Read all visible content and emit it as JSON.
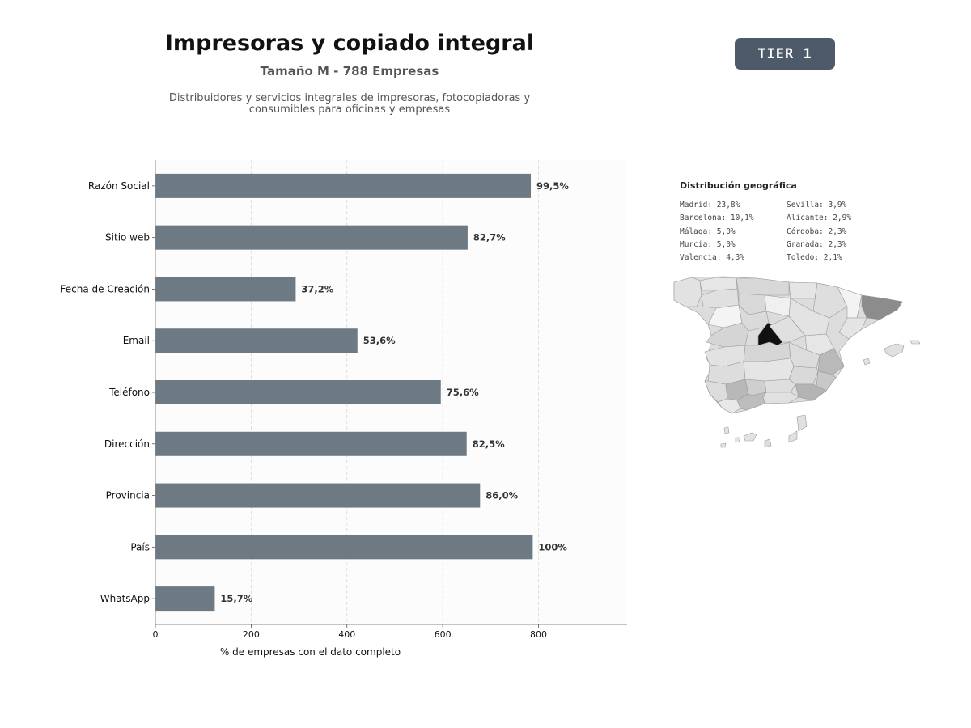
{
  "header": {
    "title": "Impresoras y copiado integral",
    "subtitle": "Tamaño M - 788 Empresas",
    "description_line1": "Distribuidores y servicios integrales de impresoras, fotocopiadoras y",
    "description_line2": "consumibles para oficinas y empresas",
    "tier_badge": "TIER 1"
  },
  "chart_data": {
    "type": "bar",
    "orientation": "horizontal",
    "categories": [
      "Razón Social",
      "Sitio web",
      "Fecha de Creación",
      "Email",
      "Teléfono",
      "Dirección",
      "Provincia",
      "País",
      "WhatsApp"
    ],
    "values": [
      784,
      652,
      293,
      422,
      596,
      650,
      678,
      788,
      124
    ],
    "data_labels": [
      "99,5%",
      "82,7%",
      "37,2%",
      "53,6%",
      "75,6%",
      "82,5%",
      "86,0%",
      "100%",
      "15,7%"
    ],
    "xlabel": "% de empresas con el dato completo",
    "xticks": [
      0,
      200,
      400,
      600,
      800
    ],
    "xlim": [
      0,
      985
    ],
    "grid": "vertical dashed",
    "bar_color": "#6e7a83"
  },
  "geo": {
    "title": "Distribución geográfica",
    "column1": [
      "Madrid: 23,8%",
      "Barcelona: 10,1%",
      "Málaga: 5,0%",
      "Murcia: 5,0%",
      "Valencia: 4,3%"
    ],
    "column2": [
      "Sevilla: 3,9%",
      "Alicante: 2,9%",
      "Córdoba: 2,3%",
      "Granada: 2,3%",
      "Toledo: 2,1%"
    ]
  }
}
